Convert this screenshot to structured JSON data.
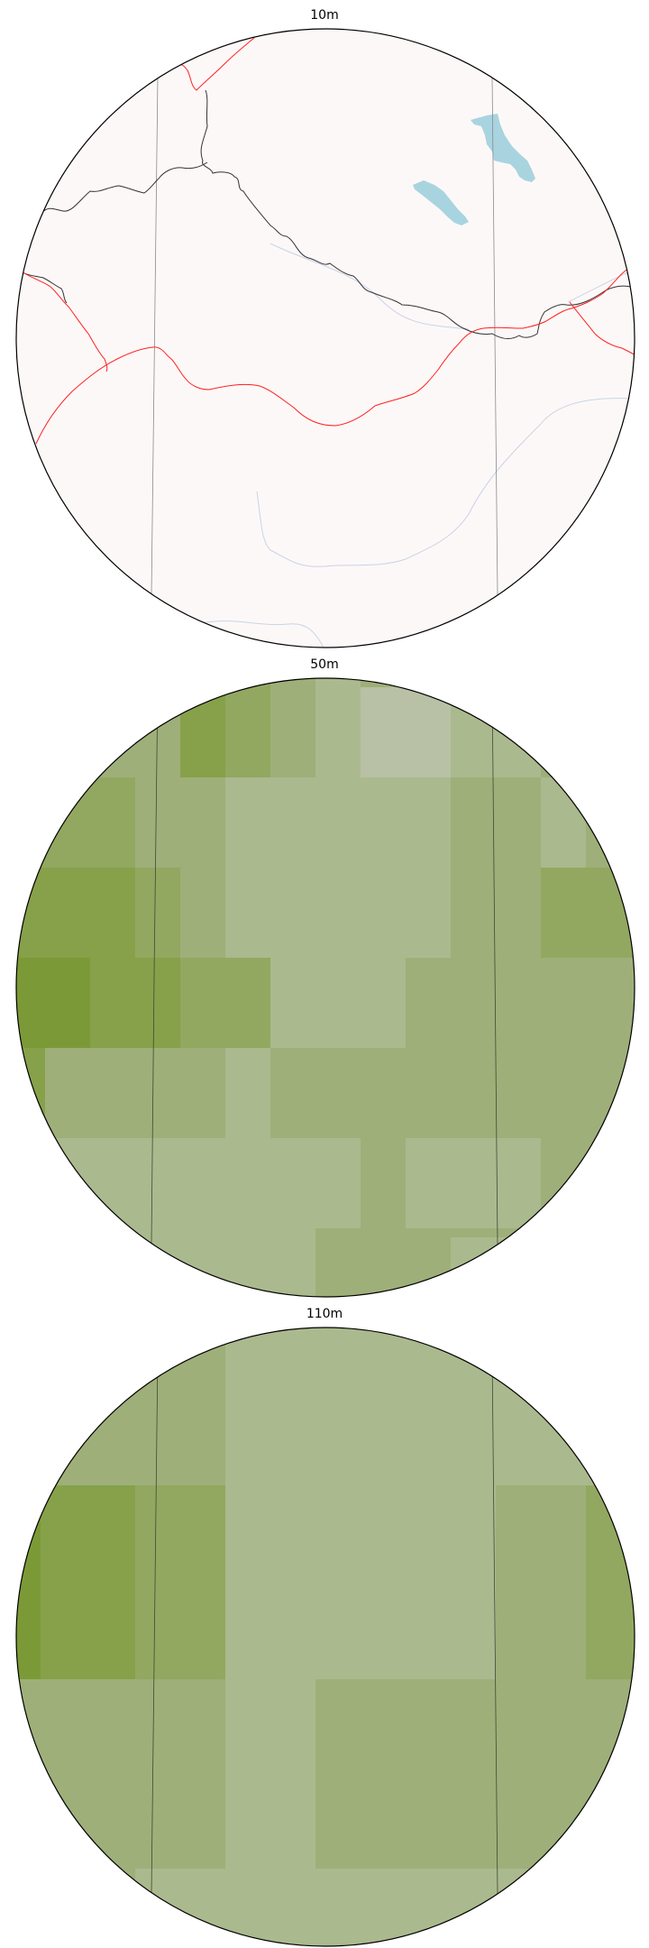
{
  "panels": [
    {
      "title": "10m",
      "background": "#fdf8f8",
      "features": {
        "borders": "#ff2020",
        "coastline": "#333333",
        "rivers": "#c8d4e4",
        "lakes": "#a8d4e0",
        "graticule": "#8a8a8a"
      }
    },
    {
      "title": "50m",
      "background": "#9faf79",
      "features": {
        "graticule": "#3f4a33",
        "land_cover": [
          "#7b9a37",
          "#86a14a",
          "#92a860",
          "#9faf79",
          "#abb98e",
          "#b8c1a5"
        ]
      }
    },
    {
      "title": "110m",
      "background": "#9faf79",
      "features": {
        "graticule": "#3f4a33",
        "land_cover": [
          "#7b9a37",
          "#86a14a",
          "#92a860",
          "#9faf79",
          "#abb98e"
        ]
      }
    }
  ]
}
